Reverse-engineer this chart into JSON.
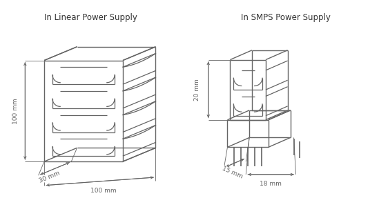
{
  "title_left": "In Linear Power Supply",
  "title_right": "In SMPS Power Supply",
  "bg_color": "#ffffff",
  "line_color": "#646464",
  "line_width": 1.0,
  "title_fontsize": 8.5,
  "dim_fontsize": 6.5,
  "left_dims": {
    "width": "100 mm",
    "depth": "30 mm",
    "height": "100 mm"
  },
  "right_dims": {
    "width": "18 mm",
    "depth": "15 mm",
    "height": "20 mm"
  }
}
